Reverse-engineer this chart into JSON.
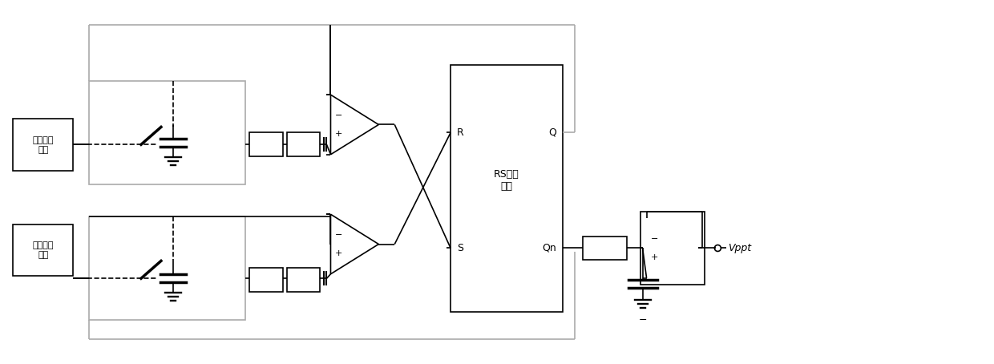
{
  "bg_color": "#ffffff",
  "line_color": "#000000",
  "gray_color": "#aaaaaa",
  "fig_width": 12.4,
  "fig_height": 4.54,
  "dpi": 100,
  "labels": {
    "current_block": "电流采样\n电路",
    "voltage_block": "电压采样\n电路",
    "rs_trigger": "RS触发\n电路",
    "R": "R",
    "S": "S",
    "Q": "Q",
    "Qn": "Qn",
    "Vppt": "Vppt",
    "plus": "+",
    "minus": "−"
  }
}
